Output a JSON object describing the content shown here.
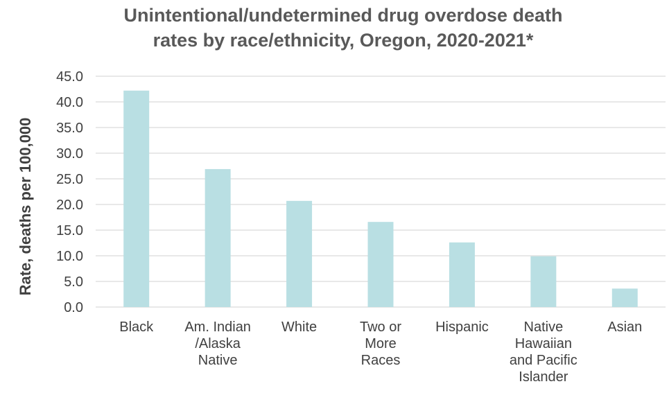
{
  "chart_data": {
    "type": "bar",
    "title": [
      "Unintentional/undetermined drug overdose death",
      "rates by race/ethnicity, Oregon, 2020-2021*"
    ],
    "ylabel": "Rate, deaths per 100,000",
    "xlabel": "",
    "ylim": [
      0,
      45
    ],
    "ytick_step": 5,
    "ytick_labels": [
      "0.0",
      "5.0",
      "10.0",
      "15.0",
      "20.0",
      "25.0",
      "30.0",
      "35.0",
      "40.0",
      "45.0"
    ],
    "grid": true,
    "categories": [
      [
        "Black"
      ],
      [
        "Am. Indian",
        "/Alaska",
        "Native"
      ],
      [
        "White"
      ],
      [
        "Two or",
        "More",
        "Races"
      ],
      [
        "Hispanic"
      ],
      [
        "Native",
        "Hawaiian",
        "and Pacific",
        "Islander"
      ],
      [
        "Asian"
      ]
    ],
    "values": [
      42.2,
      26.9,
      20.7,
      16.6,
      12.6,
      9.9,
      3.6
    ],
    "bar_color": "#b9dfe3",
    "grid_color": "#d9d9d9"
  }
}
